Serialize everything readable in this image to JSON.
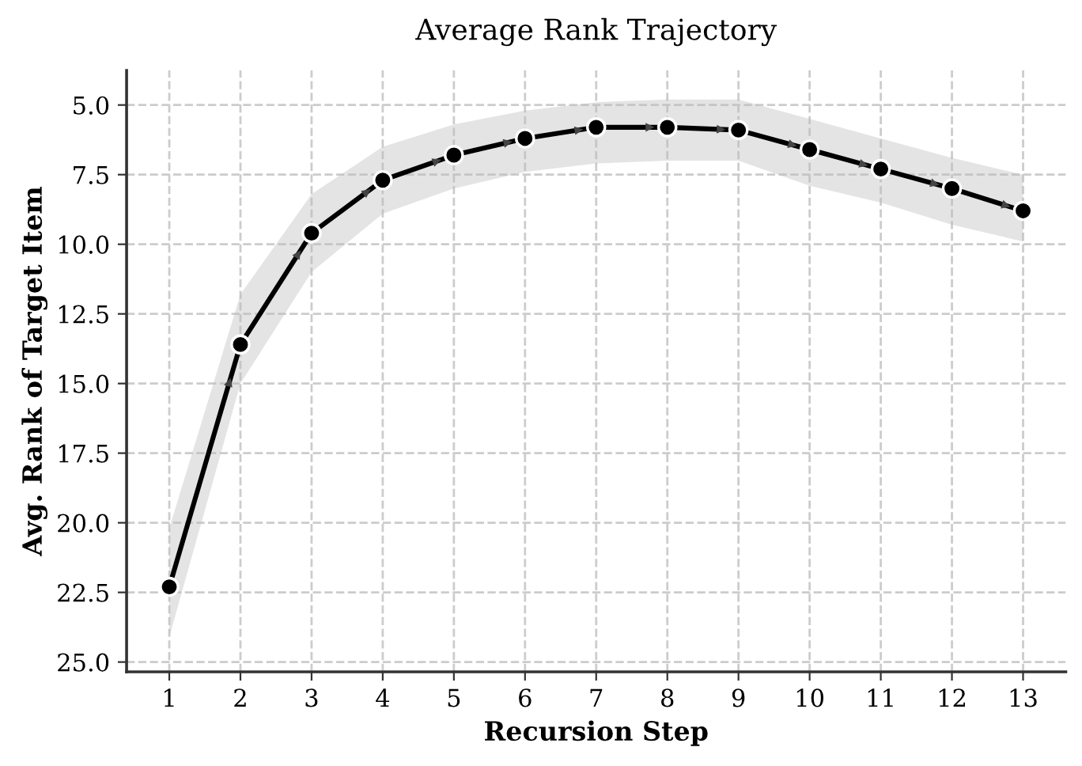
{
  "chart_data": {
    "type": "line",
    "title": "Average Rank Trajectory",
    "xlabel": "Recursion Step",
    "ylabel": "Avg. Rank of Target Item",
    "x": [
      1,
      2,
      3,
      4,
      5,
      6,
      7,
      8,
      9,
      10,
      11,
      12,
      13
    ],
    "series": [
      {
        "color": "#000000",
        "values": [
          22.3,
          13.6,
          9.6,
          7.7,
          6.8,
          6.2,
          5.8,
          5.8,
          5.9,
          6.6,
          7.3,
          8.0,
          8.8
        ],
        "lower": [
          20.2,
          11.8,
          8.2,
          6.5,
          5.7,
          5.2,
          4.9,
          4.8,
          4.8,
          5.5,
          6.2,
          6.9,
          7.5
        ],
        "upper": [
          24.1,
          15.0,
          11.0,
          8.9,
          8.0,
          7.4,
          7.1,
          7.0,
          7.0,
          7.9,
          8.5,
          9.3,
          9.9
        ]
      }
    ],
    "xlim": [
      0.4,
      13.6
    ],
    "ylim": [
      25.35,
      3.76
    ],
    "xticks": [
      1,
      2,
      3,
      4,
      5,
      6,
      7,
      8,
      9,
      10,
      11,
      12,
      13
    ],
    "yticks": [
      {
        "value": 5,
        "label": "5.0"
      },
      {
        "value": 7.5,
        "label": "7.5"
      },
      {
        "value": 10,
        "label": "10.0"
      },
      {
        "value": 12.5,
        "label": "12.5"
      },
      {
        "value": 15,
        "label": "15.0"
      },
      {
        "value": 17.5,
        "label": "17.5"
      },
      {
        "value": 20,
        "label": "20.0"
      },
      {
        "value": 22.5,
        "label": "22.5"
      },
      {
        "value": 25,
        "label": "25.0"
      }
    ],
    "grid": true,
    "marker": "circle",
    "line_style": "solid"
  }
}
